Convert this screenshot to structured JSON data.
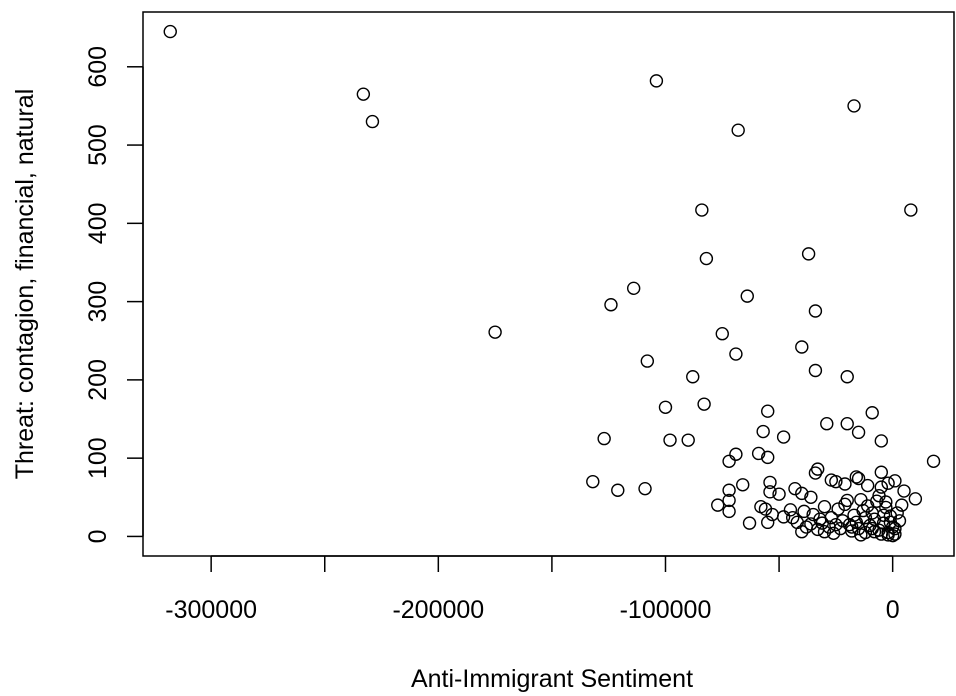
{
  "chart_data": {
    "type": "scatter",
    "title": "",
    "xlabel": "Anti-Immigrant Sentiment",
    "ylabel": "Threat: contagion, financial, natural",
    "xlim": [
      -330000,
      27000
    ],
    "ylim": [
      -25,
      670
    ],
    "xticks": [
      -300000,
      -250000,
      -200000,
      -150000,
      -100000,
      -50000,
      0
    ],
    "xtick_labels": [
      "-300000",
      "",
      "-200000",
      "",
      "-100000",
      "",
      "0"
    ],
    "yticks": [
      0,
      100,
      200,
      300,
      400,
      500,
      600
    ],
    "ytick_labels": [
      "0",
      "100",
      "200",
      "300",
      "400",
      "500",
      "600"
    ],
    "marker": "open-circle",
    "grid": false,
    "points": [
      [
        -318000,
        645
      ],
      [
        -233000,
        565
      ],
      [
        -229000,
        530
      ],
      [
        -175000,
        261
      ],
      [
        -104000,
        582
      ],
      [
        -68000,
        519
      ],
      [
        -17000,
        550
      ],
      [
        8000,
        417
      ],
      [
        -84000,
        417
      ],
      [
        -82000,
        355
      ],
      [
        -37000,
        361
      ],
      [
        -64000,
        307
      ],
      [
        -124000,
        296
      ],
      [
        -114000,
        317
      ],
      [
        -34000,
        288
      ],
      [
        -75000,
        259
      ],
      [
        -69000,
        233
      ],
      [
        -108000,
        224
      ],
      [
        -40000,
        242
      ],
      [
        -34000,
        212
      ],
      [
        -88000,
        204
      ],
      [
        -20000,
        204
      ],
      [
        -100000,
        165
      ],
      [
        -83000,
        169
      ],
      [
        -55000,
        160
      ],
      [
        -9000,
        158
      ],
      [
        -29000,
        144
      ],
      [
        -20000,
        144
      ],
      [
        -15000,
        133
      ],
      [
        -57000,
        134
      ],
      [
        -48000,
        127
      ],
      [
        -5000,
        122
      ],
      [
        -127000,
        125
      ],
      [
        -98000,
        123
      ],
      [
        -90000,
        123
      ],
      [
        -69000,
        105
      ],
      [
        -55000,
        101
      ],
      [
        -59000,
        106
      ],
      [
        -72000,
        96
      ],
      [
        18000,
        96
      ],
      [
        -132000,
        70
      ],
      [
        -121000,
        59
      ],
      [
        -109000,
        61
      ],
      [
        -66000,
        66
      ],
      [
        -72000,
        59
      ],
      [
        -77000,
        40
      ],
      [
        -72000,
        46
      ],
      [
        -72000,
        32
      ],
      [
        -63000,
        17
      ],
      [
        -54000,
        69
      ],
      [
        -54000,
        57
      ],
      [
        -50000,
        54
      ],
      [
        -43000,
        61
      ],
      [
        -40000,
        55
      ],
      [
        -33000,
        86
      ],
      [
        -34000,
        81
      ],
      [
        -27000,
        72
      ],
      [
        -25000,
        70
      ],
      [
        -21000,
        67
      ],
      [
        -16000,
        76
      ],
      [
        -15000,
        74
      ],
      [
        -5000,
        82
      ],
      [
        1000,
        71
      ],
      [
        -2000,
        68
      ],
      [
        -5000,
        63
      ],
      [
        -11000,
        65
      ],
      [
        -14000,
        47
      ],
      [
        -20000,
        46
      ],
      [
        -30000,
        38
      ],
      [
        -36000,
        50
      ],
      [
        -45000,
        34
      ],
      [
        -56000,
        35
      ],
      [
        -58000,
        38
      ],
      [
        -53000,
        28
      ],
      [
        -48000,
        25
      ],
      [
        -42000,
        18
      ],
      [
        -38000,
        12
      ],
      [
        -33000,
        9
      ],
      [
        -30000,
        6
      ],
      [
        -26000,
        4
      ],
      [
        -22000,
        20
      ],
      [
        -18000,
        12
      ],
      [
        -15000,
        10
      ],
      [
        -12000,
        5
      ],
      [
        -10000,
        14
      ],
      [
        -8000,
        22
      ],
      [
        -6000,
        8
      ],
      [
        -4000,
        17
      ],
      [
        -2000,
        5
      ],
      [
        -1000,
        26
      ],
      [
        0,
        12
      ],
      [
        1000,
        3
      ],
      [
        2000,
        30
      ],
      [
        3000,
        20
      ],
      [
        4000,
        40
      ],
      [
        5000,
        58
      ],
      [
        10000,
        48
      ],
      [
        -3000,
        37
      ],
      [
        -7000,
        45
      ],
      [
        -9000,
        30
      ],
      [
        -13000,
        33
      ],
      [
        -17000,
        27
      ],
      [
        -19000,
        15
      ],
      [
        -23000,
        10
      ],
      [
        -27000,
        24
      ],
      [
        -31000,
        17
      ],
      [
        -35000,
        28
      ],
      [
        -39000,
        32
      ],
      [
        -44000,
        24
      ],
      [
        -55000,
        18
      ],
      [
        -24000,
        35
      ],
      [
        -21000,
        41
      ],
      [
        -11000,
        39
      ],
      [
        -6000,
        52
      ],
      [
        -3000,
        44
      ],
      [
        -1000,
        18
      ],
      [
        0,
        1
      ],
      [
        -2000,
        2
      ],
      [
        -5000,
        3
      ],
      [
        -8000,
        6
      ],
      [
        -14000,
        2
      ],
      [
        -18000,
        7
      ],
      [
        -28000,
        12
      ],
      [
        -32000,
        22
      ],
      [
        -36000,
        16
      ],
      [
        -40000,
        6
      ],
      [
        -25000,
        15
      ],
      [
        -16000,
        18
      ],
      [
        -12000,
        24
      ],
      [
        -9000,
        10
      ],
      [
        -4000,
        27
      ],
      [
        1000,
        10
      ]
    ]
  }
}
